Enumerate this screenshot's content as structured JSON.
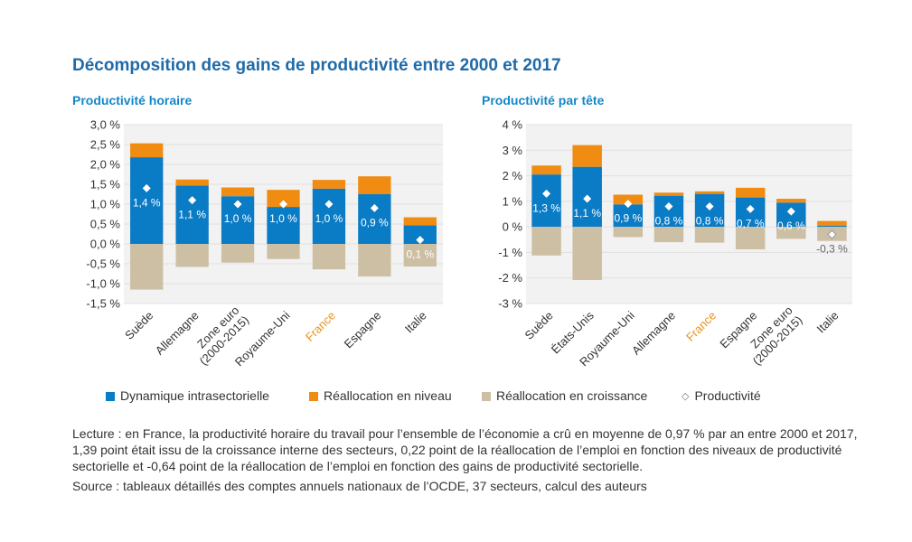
{
  "title": "Décomposition des gains de productivité entre 2000 et 2017",
  "colors": {
    "intra": "#0a7bc5",
    "niveau": "#f08c12",
    "croissance": "#cdbfa4",
    "highlight": "#e8931b",
    "axis_text": "#333333",
    "grid": "#e0e0e0",
    "title": "#1f6aa8",
    "subtitle": "#1487c7",
    "panel_bg": "#f2f2f2"
  },
  "legend": {
    "intra": "Dynamique intrasectorielle",
    "niveau": "Réallocation en niveau",
    "croissance": "Réallocation en croissance",
    "productivite": "Productivité"
  },
  "note": "Lecture : en France, la productivité horaire du travail pour l’ensemble de l’économie a crû en moyenne de 0,97 % par an entre 2000 et 2017, 1,39 point était issu de la croissance interne des secteurs, 0,22 point de la réallocation de l’emploi en fonction des niveaux de productivité sectorielle et -0,64 point de la réallocation de l’emploi en fonction des gains de productivité sectorielle.",
  "source": "Source : tableaux détaillés des comptes annuels nationaux de l’OCDE, 37 secteurs, calcul des auteurs",
  "chart_data": [
    {
      "type": "bar",
      "stacked": true,
      "title": "Productivité horaire",
      "ylim": [
        -1.5,
        3.0
      ],
      "yticks": [
        3.0,
        2.5,
        2.0,
        1.5,
        1.0,
        0.5,
        0.0,
        -0.5,
        -1.0,
        -1.5
      ],
      "ytick_labels": [
        "3,0 %",
        "2,5 %",
        "2,0 %",
        "1,5 %",
        "1,0 %",
        "0,5 %",
        "0,0 %",
        "-0,5 %",
        "-1,0 %",
        "-1,5 %"
      ],
      "categories": [
        "Suède",
        "Allemagne",
        "Zone euro\n(2000-2015)",
        "Royaume-Uni",
        "France",
        "Espagne",
        "Italie"
      ],
      "highlight": "France",
      "series": [
        {
          "name": "Dynamique intrasectorielle",
          "key": "intra",
          "values": [
            2.18,
            1.47,
            1.2,
            0.93,
            1.39,
            1.25,
            0.47
          ]
        },
        {
          "name": "Réallocation en niveau",
          "key": "niveau",
          "values": [
            0.35,
            0.15,
            0.22,
            0.43,
            0.22,
            0.45,
            0.2
          ]
        },
        {
          "name": "Réallocation en croissance",
          "key": "croissance",
          "values": [
            -1.15,
            -0.58,
            -0.47,
            -0.38,
            -0.64,
            -0.82,
            -0.57
          ]
        }
      ],
      "productivite": [
        1.4,
        1.1,
        1.0,
        1.0,
        1.0,
        0.9,
        0.1
      ],
      "productivite_labels": [
        "1,4 %",
        "1,1 %",
        "1,0 %",
        "1,0 %",
        "1,0 %",
        "0,9 %",
        "0,1 %"
      ]
    },
    {
      "type": "bar",
      "stacked": true,
      "title": "Productivité par tête",
      "ylim": [
        -3,
        4
      ],
      "yticks": [
        4,
        3,
        2,
        1,
        0,
        -1,
        -2,
        -3
      ],
      "ytick_labels": [
        "4 %",
        "3 %",
        "2 %",
        "1 %",
        "0 %",
        "-1 %",
        "-2 %",
        "-3 %"
      ],
      "categories": [
        "Suède",
        "États-Unis",
        "Royaume-Uni",
        "Allemagne",
        "France",
        "Espagne",
        "Zone euro\n(2000-2015)",
        "Italie"
      ],
      "highlight": "France",
      "series": [
        {
          "name": "Dynamique intrasectorielle",
          "key": "intra",
          "values": [
            2.05,
            2.35,
            0.88,
            1.22,
            1.29,
            1.15,
            0.95,
            0.05
          ]
        },
        {
          "name": "Réallocation en niveau",
          "key": "niveau",
          "values": [
            0.35,
            0.85,
            0.38,
            0.12,
            0.1,
            0.38,
            0.15,
            0.18
          ]
        },
        {
          "name": "Réallocation en croissance",
          "key": "croissance",
          "values": [
            -1.12,
            -2.08,
            -0.4,
            -0.6,
            -0.62,
            -0.88,
            -0.47,
            -0.55
          ]
        }
      ],
      "productivite": [
        1.3,
        1.1,
        0.9,
        0.8,
        0.8,
        0.7,
        0.6,
        -0.3
      ],
      "productivite_labels": [
        "1,3 %",
        "1,1 %",
        "0,9 %",
        "0,8 %",
        "0,8 %",
        "0,7 %",
        "0,6 %",
        "-0,3 %"
      ]
    }
  ]
}
